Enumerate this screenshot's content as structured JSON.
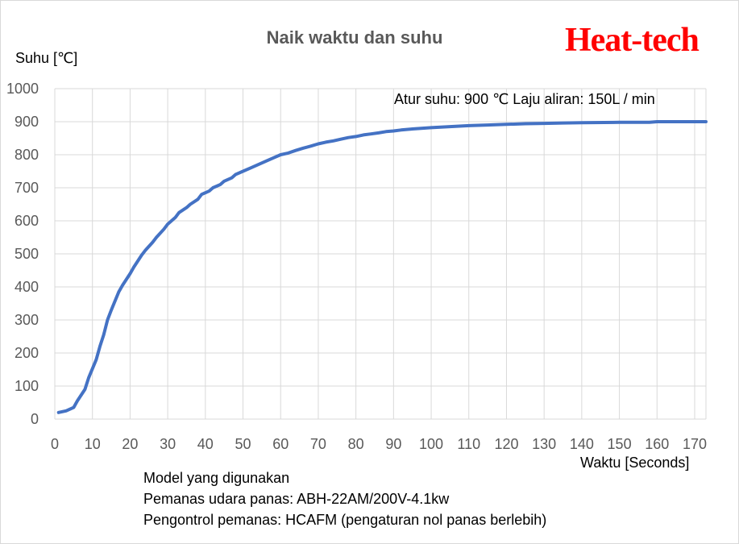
{
  "chart_data": {
    "type": "line",
    "title": "Naik waktu dan suhu",
    "brand": "Heat-tech",
    "ylabel": "Suhu [℃]",
    "xlabel": "Waktu [Seconds]",
    "annotation": "Atur suhu: 900 ℃ Laju aliran: 150L / min",
    "xlim": [
      0,
      173
    ],
    "ylim": [
      0,
      1000
    ],
    "xticks": [
      0,
      10,
      20,
      30,
      40,
      50,
      60,
      70,
      80,
      90,
      100,
      110,
      120,
      130,
      140,
      150,
      160,
      170
    ],
    "yticks": [
      0,
      100,
      200,
      300,
      400,
      500,
      600,
      700,
      800,
      900,
      1000
    ],
    "grid": "vertical and horizontal",
    "line_color": "#4472c4",
    "series": [
      {
        "x": [
          1,
          3,
          5,
          6,
          8,
          9,
          11,
          12,
          13,
          14,
          15,
          17,
          18,
          20,
          21,
          23,
          24,
          26,
          27,
          29,
          30,
          32,
          33,
          35,
          36,
          38,
          39,
          41,
          42,
          44,
          45,
          47,
          48,
          50,
          52,
          54,
          56,
          58,
          60,
          62,
          64,
          66,
          68,
          70,
          72,
          74,
          76,
          78,
          80,
          82,
          84,
          86,
          88,
          90,
          92,
          95,
          100,
          105,
          110,
          115,
          120,
          125,
          130,
          135,
          140,
          150,
          158,
          160,
          165,
          173
        ],
        "y": [
          20,
          25,
          35,
          55,
          90,
          125,
          180,
          220,
          255,
          300,
          330,
          385,
          405,
          440,
          460,
          495,
          510,
          535,
          550,
          575,
          590,
          610,
          625,
          640,
          650,
          665,
          680,
          690,
          700,
          710,
          720,
          730,
          740,
          750,
          760,
          770,
          780,
          790,
          800,
          805,
          813,
          820,
          826,
          833,
          838,
          842,
          847,
          852,
          855,
          860,
          863,
          866,
          870,
          872,
          875,
          878,
          882,
          885,
          888,
          890,
          892,
          894,
          895,
          896,
          897,
          898,
          898,
          900,
          900,
          900
        ]
      }
    ]
  },
  "notes": [
    "Model yang digunakan",
    "Pemanas udara panas: ABH-22AM/200V-4.1kw",
    "Pengontrol pemanas: HCAFM (pengaturan nol panas berlebih)"
  ]
}
